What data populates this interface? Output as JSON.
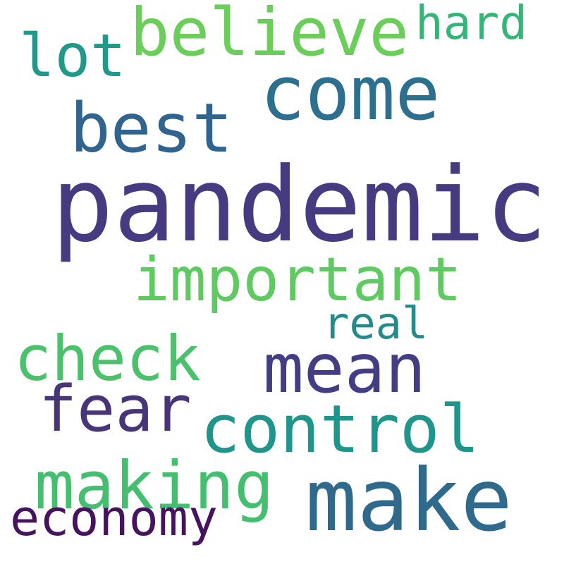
{
  "words": {
    "pandemic": {
      "text": "pandemic",
      "color": "#463a80"
    },
    "come": {
      "text": "come",
      "color": "#2c6f8e"
    },
    "believe": {
      "text": "believe",
      "color": "#6cce5a"
    },
    "best": {
      "text": "best",
      "color": "#30648e"
    },
    "lot": {
      "text": "lot",
      "color": "#21998a"
    },
    "hard": {
      "text": "hard",
      "color": "#34b679"
    },
    "important": {
      "text": "important",
      "color": "#5fc962"
    },
    "real": {
      "text": "real",
      "color": "#248b8c"
    },
    "check": {
      "text": "check",
      "color": "#4cc16b"
    },
    "mean": {
      "text": "mean",
      "color": "#433d84"
    },
    "fear": {
      "text": "fear",
      "color": "#483577"
    },
    "control": {
      "text": "control",
      "color": "#1f968b"
    },
    "making": {
      "text": "making",
      "color": "#44bf70"
    },
    "make": {
      "text": "make",
      "color": "#2f6a8d"
    },
    "economy": {
      "text": "economy",
      "color": "#46145e"
    }
  }
}
